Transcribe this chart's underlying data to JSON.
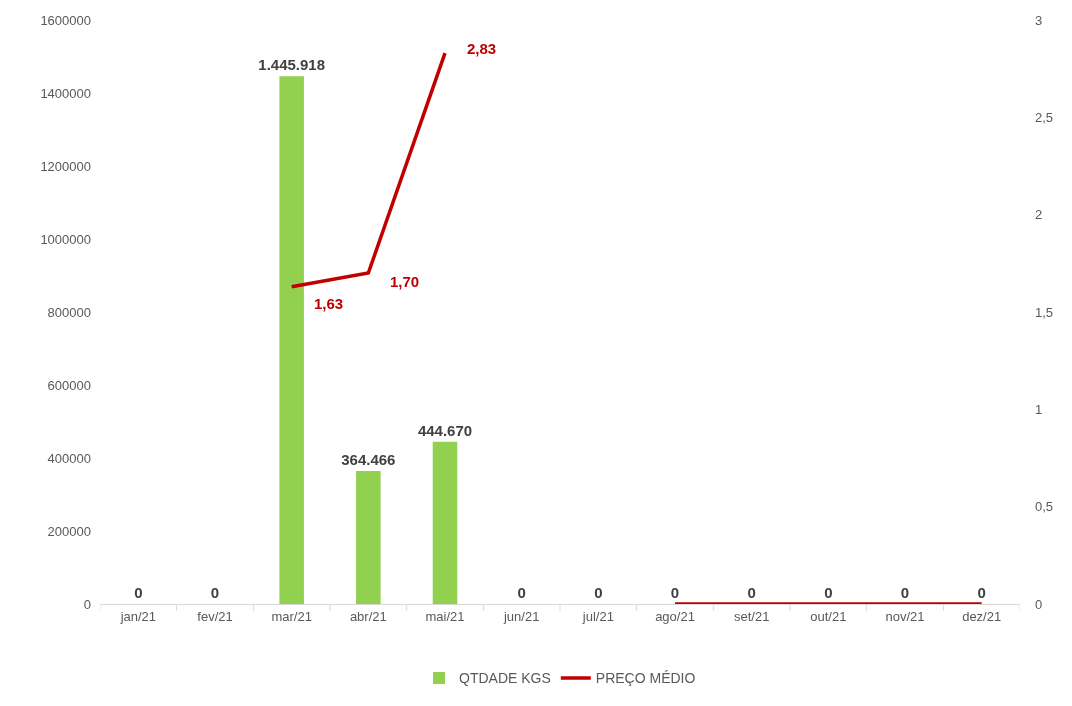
{
  "chart_data": {
    "type": "bar",
    "categories": [
      "jan/21",
      "fev/21",
      "mar/21",
      "abr/21",
      "mai/21",
      "jun/21",
      "jul/21",
      "ago/21",
      "set/21",
      "out/21",
      "nov/21",
      "dez/21"
    ],
    "series": [
      {
        "name": "QTDADE KGS",
        "color": "#92d050",
        "values": [
          0,
          0,
          1445918,
          364466,
          444670,
          0,
          0,
          0,
          0,
          0,
          0,
          0
        ],
        "value_labels": [
          "0",
          "0",
          "1.445.918",
          "364.466",
          "444.670",
          "0",
          "0",
          "0",
          "0",
          "0",
          "0",
          "0"
        ]
      },
      {
        "name": "PREÇO MÉDIO",
        "type": "line",
        "axis": "y2",
        "color": "#c00000",
        "values": [
          null,
          null,
          1.63,
          1.7,
          2.83,
          null,
          null,
          0,
          0,
          0,
          0,
          0
        ],
        "value_labels": [
          null,
          null,
          "1,63",
          "1,70",
          "2,83",
          null,
          null,
          null,
          null,
          null,
          null,
          null
        ]
      }
    ],
    "ylim": [
      0,
      1600000
    ],
    "yticks": [
      0,
      200000,
      400000,
      600000,
      800000,
      1000000,
      1200000,
      1400000,
      1600000
    ],
    "y2lim": [
      0,
      3
    ],
    "y2ticks": [
      0,
      {
        "value": 0.5,
        "label": "0,5"
      },
      1,
      {
        "value": 1.5,
        "label": "1,5"
      },
      2,
      {
        "value": 2.5,
        "label": "2,5"
      },
      3
    ],
    "legend": "bottom"
  }
}
